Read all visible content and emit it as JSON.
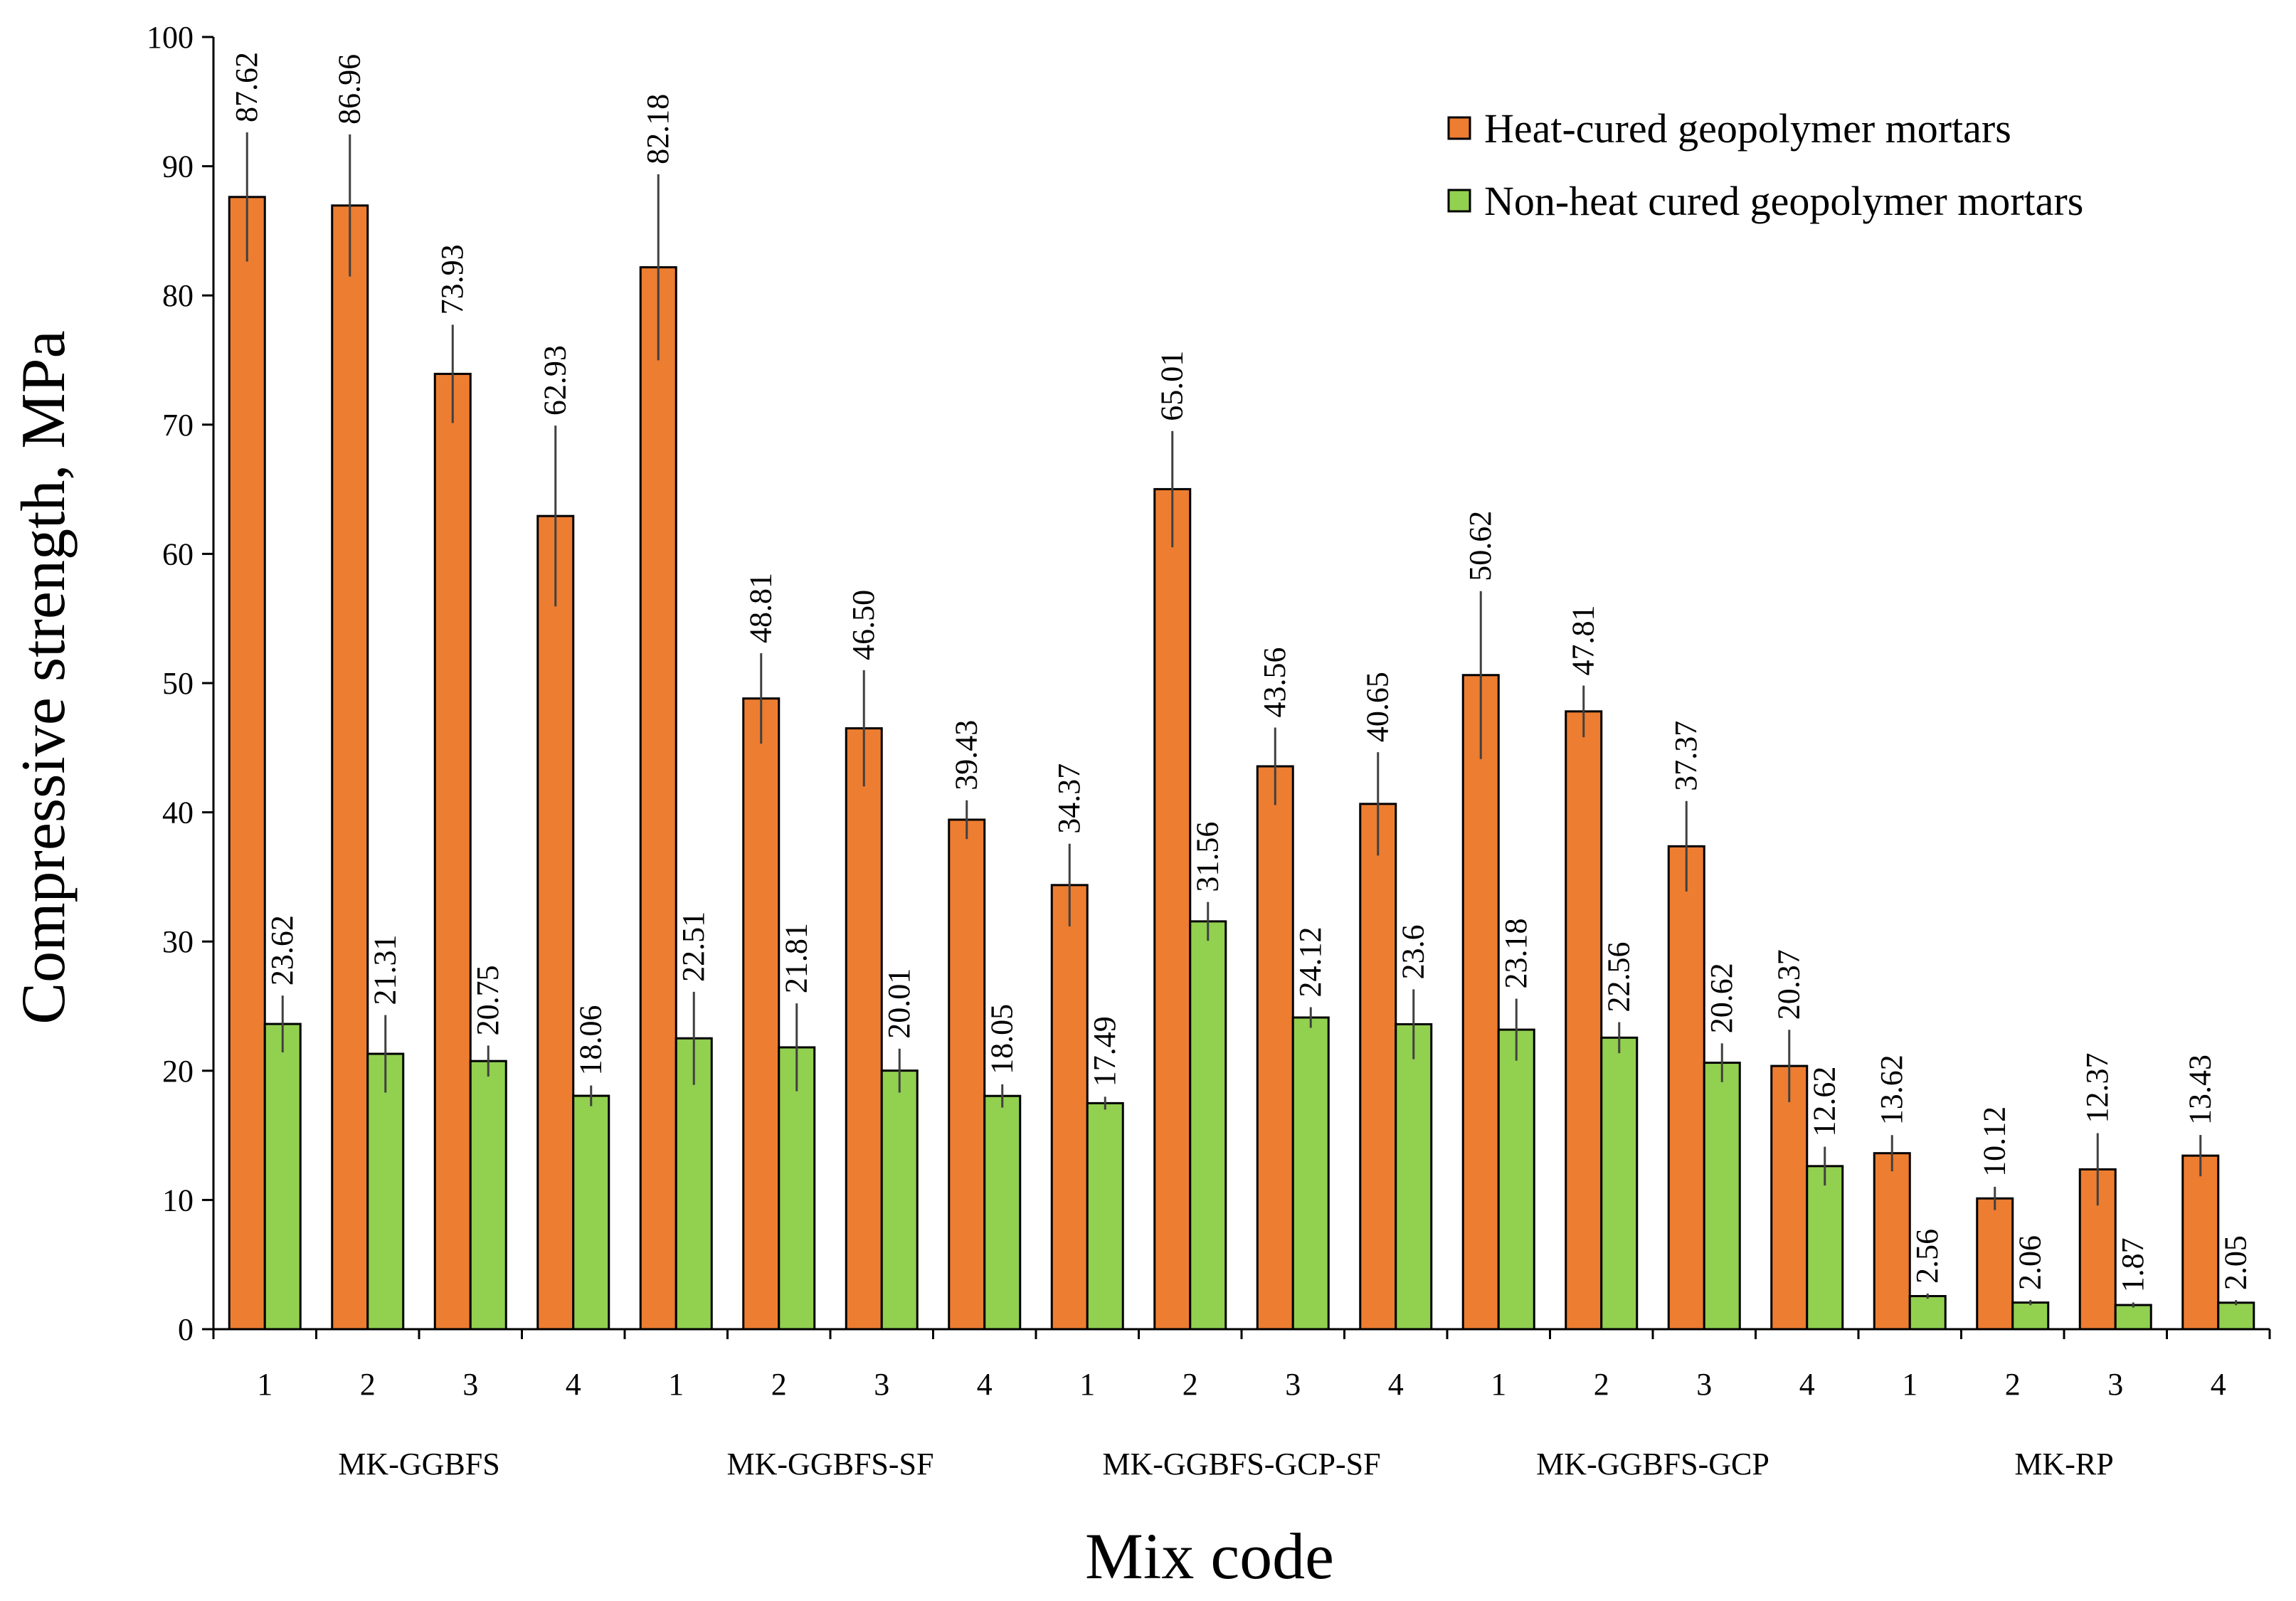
{
  "chart_data": {
    "type": "bar",
    "title": "",
    "xlabel": "Mix code",
    "ylabel": "Compressive strength, MPa",
    "ylim": [
      0,
      100
    ],
    "yticks": [
      0,
      10,
      20,
      30,
      40,
      50,
      60,
      70,
      80,
      90,
      100
    ],
    "legend_position": "top-right",
    "groups": [
      {
        "name": "MK-GGBFS",
        "categories": [
          "1",
          "2",
          "3",
          "4"
        ]
      },
      {
        "name": "MK-GGBFS-SF",
        "categories": [
          "1",
          "2",
          "3",
          "4"
        ]
      },
      {
        "name": "MK-GGBFS-GCP-SF",
        "categories": [
          "1",
          "2",
          "3",
          "4"
        ]
      },
      {
        "name": "MK-GGBFS-GCP",
        "categories": [
          "1",
          "2",
          "3",
          "4"
        ]
      },
      {
        "name": "MK-RP",
        "categories": [
          "1",
          "2",
          "3",
          "4"
        ]
      }
    ],
    "series": [
      {
        "name": "Heat-cured geopolymer mortars",
        "color": "#ED7D31",
        "values": [
          87.62,
          86.96,
          73.93,
          62.93,
          82.18,
          48.81,
          46.5,
          39.43,
          34.37,
          65.01,
          43.56,
          40.65,
          50.62,
          47.81,
          37.37,
          20.37,
          13.62,
          10.12,
          12.37,
          13.43
        ],
        "labels": [
          "87.62",
          "86.96",
          "73.93",
          "62.93",
          "82.18",
          "48.81",
          "46.50",
          "39.43",
          "34.37",
          "65.01",
          "43.56",
          "40.65",
          "50.62",
          "47.81",
          "37.37",
          "20.37",
          "13.62",
          "10.12",
          "12.37",
          "13.43"
        ],
        "errors": [
          5,
          5.5,
          3.8,
          7,
          7.2,
          3.5,
          4.5,
          1.5,
          3.2,
          4.5,
          3,
          4,
          6.5,
          2,
          3.5,
          2.8,
          1.4,
          0.9,
          2.8,
          1.6
        ]
      },
      {
        "name": "Non-heat cured geopolymer mortars",
        "color": "#92D050",
        "values": [
          23.62,
          21.31,
          20.75,
          18.06,
          22.51,
          21.81,
          20.01,
          18.05,
          17.49,
          31.56,
          24.12,
          23.6,
          23.18,
          22.56,
          20.62,
          12.62,
          2.56,
          2.06,
          1.87,
          2.05
        ],
        "labels": [
          "23.62",
          "21.31",
          "20.75",
          "18.06",
          "22.51",
          "21.81",
          "20.01",
          "18.05",
          "17.49",
          "31.56",
          "24.12",
          "23.6",
          "23.18",
          "22.56",
          "20.62",
          "12.62",
          "2.56",
          "2.06",
          "1.87",
          "2.05"
        ],
        "errors": [
          2.2,
          3,
          1.2,
          0.8,
          3.6,
          3.4,
          1.7,
          0.9,
          0.5,
          1.5,
          0.8,
          2.7,
          2.4,
          1.2,
          1.5,
          1.5,
          0.2,
          0.2,
          0.2,
          0.2
        ]
      }
    ]
  }
}
